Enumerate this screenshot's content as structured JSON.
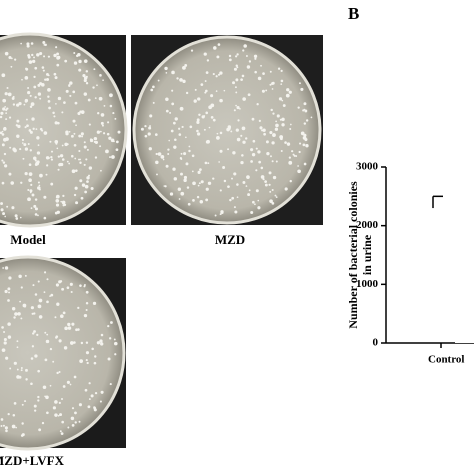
{
  "panel_label": "B",
  "photos": [
    {
      "label": "Model"
    },
    {
      "label": "MZD"
    },
    {
      "label": "MZD+LVFX"
    }
  ],
  "chart_data": {
    "type": "bar",
    "y_label": [
      "Number of bacterial colonies",
      "in urine"
    ],
    "categories": [
      "Control"
    ],
    "values": [
      2300
    ],
    "errors": [
      200
    ],
    "color": "#ffffff",
    "ylim": [
      0,
      3000
    ],
    "yticks": [
      0,
      1000,
      2000,
      3000
    ]
  }
}
